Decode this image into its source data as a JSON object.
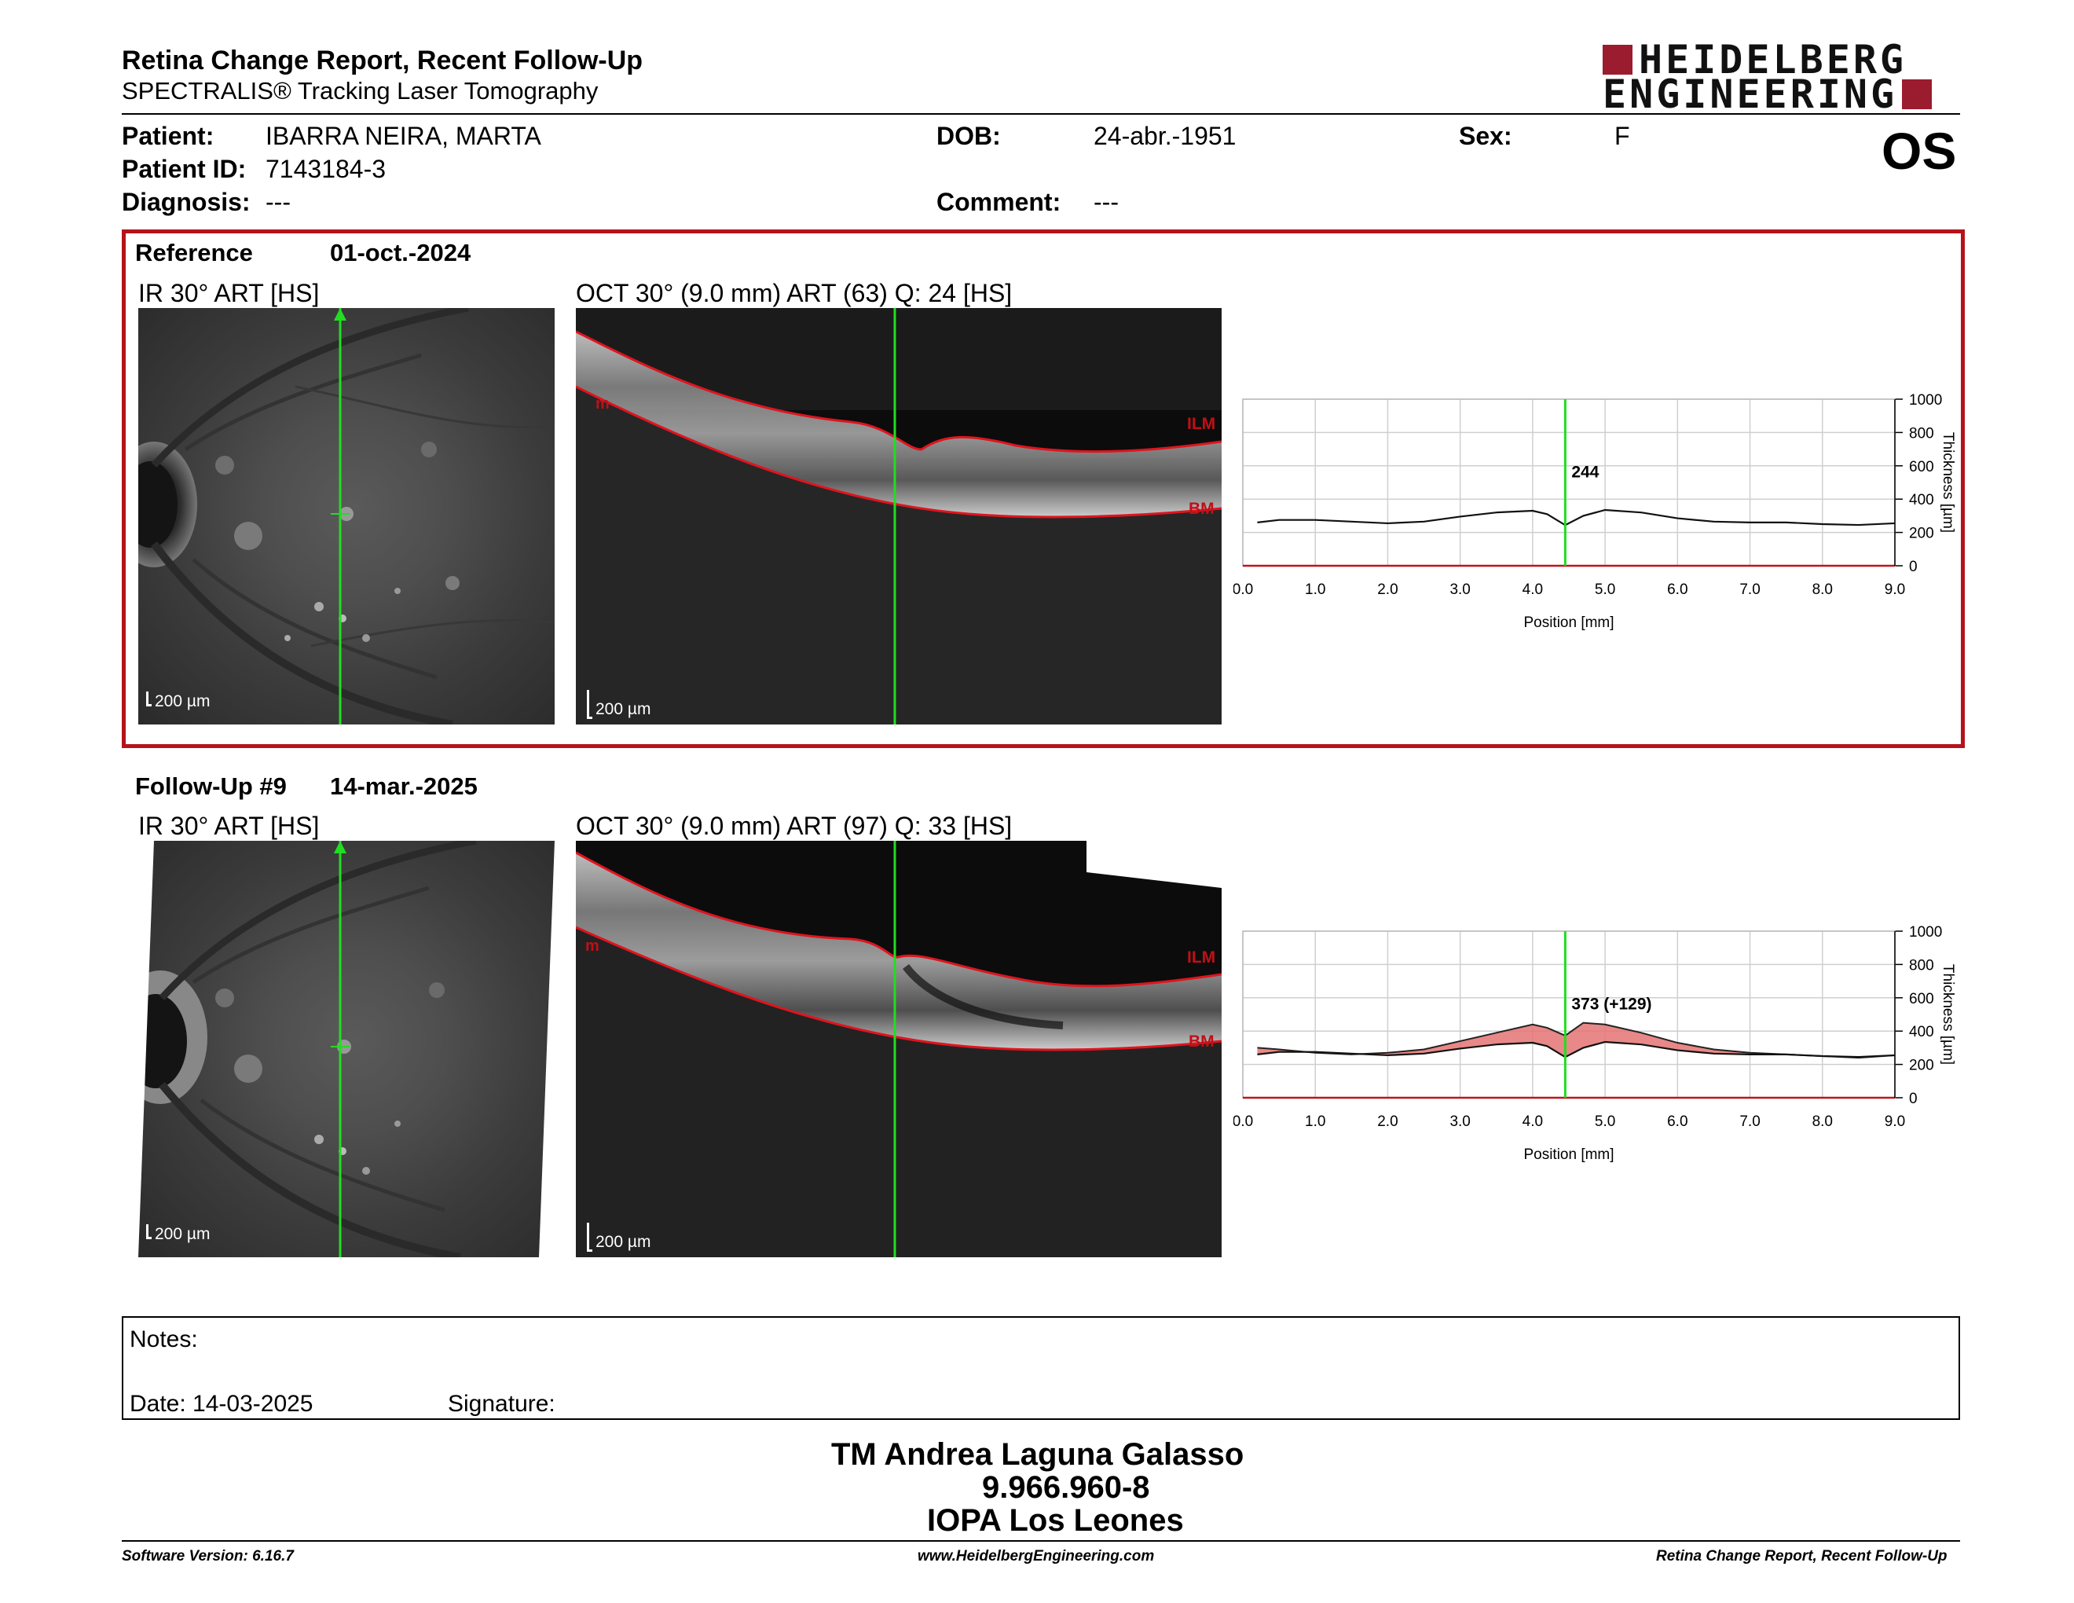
{
  "header": {
    "title": "Retina Change Report, Recent Follow-Up",
    "subtitle": "SPECTRALIS® Tracking Laser Tomography",
    "logo_line1": "HEIDELBERG",
    "logo_line2": "ENGINEERING",
    "eye": "OS"
  },
  "patient": {
    "name_label": "Patient:",
    "name": "IBARRA NEIRA, MARTA",
    "id_label": "Patient ID:",
    "id": "7143184-3",
    "diagnosis_label": "Diagnosis:",
    "diagnosis": "---",
    "dob_label": "DOB:",
    "dob": "24-abr.-1951",
    "comment_label": "Comment:",
    "comment": "---",
    "sex_label": "Sex:",
    "sex": "F"
  },
  "reference": {
    "label": "Reference",
    "date": "01-oct.-2024",
    "ir_title": "IR 30° ART [HS]",
    "oct_title": "OCT 30° (9.0 mm) ART (63) Q: 24 [HS]",
    "scale": "200 µm",
    "ilm": "ILM",
    "bm": "BM",
    "marker_value": "244"
  },
  "followup": {
    "label": "Follow-Up #9",
    "date": "14-mar.-2025",
    "ir_title": "IR 30° ART [HS]",
    "oct_title": "OCT 30° (9.0 mm) ART (97) Q: 33 [HS]",
    "scale": "200 µm",
    "ilm": "ILM",
    "bm": "BM",
    "marker_value": "373 (+129)"
  },
  "chart_data": [
    {
      "type": "line",
      "xlabel": "Position [mm]",
      "ylabel": "Thickness [µm]",
      "xlim": [
        0,
        9
      ],
      "ylim": [
        0,
        1000
      ],
      "xticks": [
        "0.0",
        "1.0",
        "2.0",
        "3.0",
        "4.0",
        "5.0",
        "6.0",
        "7.0",
        "8.0",
        "9.0"
      ],
      "yticks": [
        "0",
        "200",
        "400",
        "600",
        "800",
        "1000"
      ],
      "grid": true,
      "marker_x": 4.45,
      "marker_label": "244",
      "series": [
        {
          "x": [
            0.2,
            0.5,
            1.0,
            1.5,
            2.0,
            2.5,
            3.0,
            3.5,
            4.0,
            4.2,
            4.45,
            4.7,
            5.0,
            5.5,
            6.0,
            6.5,
            7.0,
            7.5,
            8.0,
            8.5,
            9.0
          ],
          "y": [
            260,
            275,
            275,
            265,
            255,
            265,
            295,
            320,
            330,
            310,
            244,
            300,
            335,
            320,
            285,
            265,
            260,
            260,
            250,
            245,
            255
          ]
        }
      ]
    },
    {
      "type": "area",
      "xlabel": "Position [mm]",
      "ylabel": "Thickness [µm]",
      "xlim": [
        0,
        9
      ],
      "ylim": [
        0,
        1000
      ],
      "xticks": [
        "0.0",
        "1.0",
        "2.0",
        "3.0",
        "4.0",
        "5.0",
        "6.0",
        "7.0",
        "8.0",
        "9.0"
      ],
      "yticks": [
        "0",
        "200",
        "400",
        "600",
        "800",
        "1000"
      ],
      "grid": true,
      "marker_x": 4.45,
      "marker_label": "373 (+129)",
      "series": [
        {
          "x": [
            0.2,
            0.5,
            1.0,
            1.5,
            2.0,
            2.5,
            3.0,
            3.5,
            4.0,
            4.2,
            4.45,
            4.7,
            5.0,
            5.5,
            6.0,
            6.5,
            7.0,
            7.5,
            8.0,
            8.5,
            9.0
          ],
          "y": [
            260,
            275,
            275,
            265,
            255,
            265,
            295,
            320,
            330,
            310,
            244,
            300,
            335,
            320,
            285,
            265,
            260,
            260,
            250,
            245,
            255
          ]
        },
        {
          "x": [
            0.2,
            0.5,
            1.0,
            1.5,
            2.0,
            2.5,
            3.0,
            3.5,
            4.0,
            4.2,
            4.45,
            4.7,
            5.0,
            5.5,
            6.0,
            6.5,
            7.0,
            7.5,
            8.0,
            8.5,
            9.0
          ],
          "y": [
            300,
            290,
            270,
            260,
            270,
            290,
            340,
            390,
            440,
            420,
            373,
            450,
            440,
            390,
            330,
            290,
            270,
            260,
            250,
            240,
            255
          ]
        }
      ],
      "fill_color": "#e57373"
    }
  ],
  "notes": {
    "notes_label": "Notes:",
    "date_label": "Date: 14-03-2025",
    "signature_label": "Signature:"
  },
  "signatory": {
    "name": "TM Andrea Laguna Galasso",
    "id": "9.966.960-8",
    "institution": "IOPA Los Leones"
  },
  "footer": {
    "software": "Software Version: 6.16.7",
    "website": "www.HeidelbergEngineering.com",
    "report": "Retina Change Report, Recent Follow-Up"
  },
  "colors": {
    "accent_red": "#b5121b",
    "green_marker": "#22dd22",
    "ilm_red": "#e0141e"
  }
}
